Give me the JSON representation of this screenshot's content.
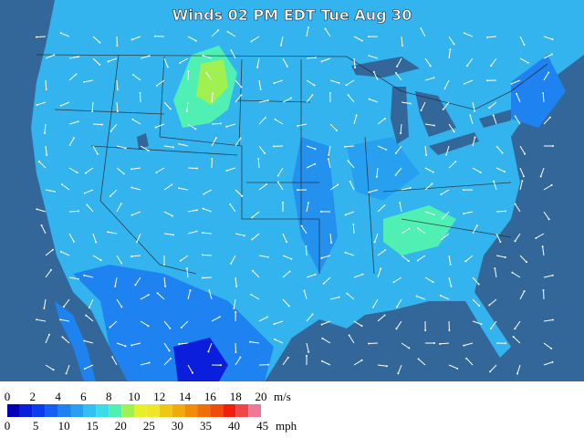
{
  "title": "Winds 02 PM EDT Tue Aug 30",
  "legend": {
    "colors": [
      "#0000b4",
      "#0a1edc",
      "#0a3cf0",
      "#1460f0",
      "#1e82f0",
      "#28a0f0",
      "#32c0f0",
      "#3cdce6",
      "#50f0b4",
      "#a0f050",
      "#e6f028",
      "#f0e628",
      "#f0c814",
      "#f0aa0a",
      "#f08c0a",
      "#f06e0a",
      "#f04b0a",
      "#f01e0a",
      "#f04646",
      "#f07896"
    ],
    "ms_ticks": [
      0,
      2,
      4,
      6,
      8,
      10,
      12,
      14,
      16,
      18,
      20
    ],
    "ms_unit": "m/s",
    "mph_ticks": [
      0,
      5,
      10,
      15,
      20,
      25,
      30,
      35,
      40,
      45
    ],
    "mph_unit": "mph"
  }
}
